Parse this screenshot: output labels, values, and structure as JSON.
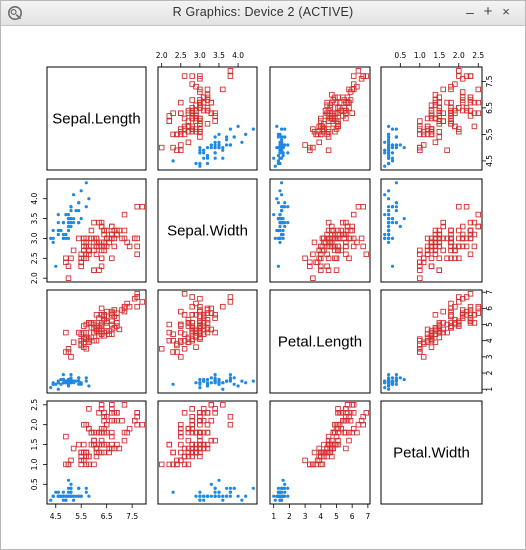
{
  "window": {
    "title": "R Graphics: Device 2 (ACTIVE)",
    "controls": {
      "minimize": "–",
      "maximize": "+",
      "close": "×"
    }
  },
  "colors": {
    "setosa": "#1e88e5",
    "other": "#d32f2f",
    "frame": "#000000"
  },
  "chart_data": {
    "type": "scatter",
    "variables": [
      "Sepal.Length",
      "Sepal.Width",
      "Petal.Length",
      "Petal.Width"
    ],
    "ranges": [
      [
        4.3,
        7.9
      ],
      [
        2.0,
        4.4
      ],
      [
        1.0,
        6.9
      ],
      [
        0.1,
        2.5
      ]
    ],
    "ticks": [
      [
        4.5,
        5.5,
        6.5,
        7.5
      ],
      [
        2.0,
        2.5,
        3.0,
        3.5,
        4.0
      ],
      [
        1,
        2,
        3,
        4,
        5,
        6,
        7
      ],
      [
        0.5,
        1.0,
        1.5,
        2.0,
        2.5
      ]
    ],
    "tick_labels": [
      [
        "4.5",
        "5.5",
        "6.5",
        "7.5"
      ],
      [
        "2.0",
        "2.5",
        "3.0",
        "3.5",
        "4.0"
      ],
      [
        "1",
        "2",
        "3",
        "4",
        "5",
        "6",
        "7"
      ],
      [
        "0.5",
        "1.0",
        "1.5",
        "2.0",
        "2.5"
      ]
    ],
    "series": [
      {
        "color": "#1e88e5",
        "marker": "filled-circle",
        "rows": [
          [
            5.1,
            3.5,
            1.4,
            0.2
          ],
          [
            4.9,
            3.0,
            1.4,
            0.2
          ],
          [
            4.7,
            3.2,
            1.3,
            0.2
          ],
          [
            4.6,
            3.1,
            1.5,
            0.2
          ],
          [
            5.0,
            3.6,
            1.4,
            0.2
          ],
          [
            5.4,
            3.9,
            1.7,
            0.4
          ],
          [
            4.6,
            3.4,
            1.4,
            0.3
          ],
          [
            5.0,
            3.4,
            1.5,
            0.2
          ],
          [
            4.4,
            2.9,
            1.4,
            0.2
          ],
          [
            4.9,
            3.1,
            1.5,
            0.1
          ],
          [
            5.4,
            3.7,
            1.5,
            0.2
          ],
          [
            4.8,
            3.4,
            1.6,
            0.2
          ],
          [
            4.8,
            3.0,
            1.4,
            0.1
          ],
          [
            4.3,
            3.0,
            1.1,
            0.1
          ],
          [
            5.8,
            4.0,
            1.2,
            0.2
          ],
          [
            5.7,
            4.4,
            1.5,
            0.4
          ],
          [
            5.4,
            3.9,
            1.3,
            0.4
          ],
          [
            5.1,
            3.5,
            1.4,
            0.3
          ],
          [
            5.7,
            3.8,
            1.7,
            0.3
          ],
          [
            5.1,
            3.8,
            1.5,
            0.3
          ],
          [
            5.4,
            3.4,
            1.7,
            0.2
          ],
          [
            5.1,
            3.7,
            1.5,
            0.4
          ],
          [
            4.6,
            3.6,
            1.0,
            0.2
          ],
          [
            5.1,
            3.3,
            1.7,
            0.5
          ],
          [
            4.8,
            3.4,
            1.9,
            0.2
          ],
          [
            5.0,
            3.0,
            1.6,
            0.2
          ],
          [
            5.0,
            3.4,
            1.6,
            0.4
          ],
          [
            5.2,
            3.5,
            1.5,
            0.2
          ],
          [
            5.2,
            3.4,
            1.4,
            0.2
          ],
          [
            4.7,
            3.2,
            1.6,
            0.2
          ],
          [
            4.8,
            3.1,
            1.6,
            0.2
          ],
          [
            5.4,
            3.4,
            1.5,
            0.4
          ],
          [
            5.2,
            4.1,
            1.5,
            0.1
          ],
          [
            5.5,
            4.2,
            1.4,
            0.2
          ],
          [
            4.9,
            3.1,
            1.5,
            0.2
          ],
          [
            5.0,
            3.2,
            1.2,
            0.2
          ],
          [
            5.5,
            3.5,
            1.3,
            0.2
          ],
          [
            4.9,
            3.6,
            1.4,
            0.1
          ],
          [
            4.4,
            3.0,
            1.3,
            0.2
          ],
          [
            5.1,
            3.4,
            1.5,
            0.2
          ],
          [
            5.0,
            3.5,
            1.3,
            0.3
          ],
          [
            4.5,
            2.3,
            1.3,
            0.3
          ],
          [
            4.4,
            3.2,
            1.3,
            0.2
          ],
          [
            5.0,
            3.5,
            1.6,
            0.6
          ],
          [
            5.1,
            3.8,
            1.9,
            0.4
          ],
          [
            4.8,
            3.0,
            1.4,
            0.3
          ],
          [
            5.1,
            3.8,
            1.6,
            0.2
          ],
          [
            4.6,
            3.2,
            1.4,
            0.2
          ],
          [
            5.3,
            3.7,
            1.5,
            0.2
          ],
          [
            5.0,
            3.3,
            1.4,
            0.2
          ]
        ]
      },
      {
        "color": "#d32f2f",
        "marker": "open-square",
        "rows": [
          [
            7.0,
            3.2,
            4.7,
            1.4
          ],
          [
            6.4,
            3.2,
            4.5,
            1.5
          ],
          [
            6.9,
            3.1,
            4.9,
            1.5
          ],
          [
            5.5,
            2.3,
            4.0,
            1.3
          ],
          [
            6.5,
            2.8,
            4.6,
            1.5
          ],
          [
            5.7,
            2.8,
            4.5,
            1.3
          ],
          [
            6.3,
            3.3,
            4.7,
            1.6
          ],
          [
            4.9,
            2.4,
            3.3,
            1.0
          ],
          [
            6.6,
            2.9,
            4.6,
            1.3
          ],
          [
            5.2,
            2.7,
            3.9,
            1.4
          ],
          [
            5.0,
            2.0,
            3.5,
            1.0
          ],
          [
            5.9,
            3.0,
            4.2,
            1.5
          ],
          [
            6.0,
            2.2,
            4.0,
            1.0
          ],
          [
            6.1,
            2.9,
            4.7,
            1.4
          ],
          [
            5.6,
            2.9,
            3.6,
            1.3
          ],
          [
            6.7,
            3.1,
            4.4,
            1.4
          ],
          [
            5.6,
            3.0,
            4.5,
            1.5
          ],
          [
            5.8,
            2.7,
            4.1,
            1.0
          ],
          [
            6.2,
            2.2,
            4.5,
            1.5
          ],
          [
            5.6,
            2.5,
            3.9,
            1.1
          ],
          [
            5.9,
            3.2,
            4.8,
            1.8
          ],
          [
            6.1,
            2.8,
            4.0,
            1.3
          ],
          [
            6.3,
            2.5,
            4.9,
            1.5
          ],
          [
            6.1,
            2.8,
            4.7,
            1.2
          ],
          [
            6.4,
            2.9,
            4.3,
            1.3
          ],
          [
            6.6,
            3.0,
            4.4,
            1.4
          ],
          [
            6.8,
            2.8,
            4.8,
            1.4
          ],
          [
            6.7,
            3.0,
            5.0,
            1.7
          ],
          [
            6.0,
            2.9,
            4.5,
            1.5
          ],
          [
            5.7,
            2.6,
            3.5,
            1.0
          ],
          [
            5.5,
            2.4,
            3.8,
            1.1
          ],
          [
            5.5,
            2.4,
            3.7,
            1.0
          ],
          [
            5.8,
            2.7,
            3.9,
            1.2
          ],
          [
            6.0,
            2.7,
            5.1,
            1.6
          ],
          [
            5.4,
            3.0,
            4.5,
            1.5
          ],
          [
            6.0,
            3.4,
            4.5,
            1.6
          ],
          [
            6.7,
            3.1,
            4.7,
            1.5
          ],
          [
            6.3,
            2.3,
            4.4,
            1.3
          ],
          [
            5.6,
            3.0,
            4.1,
            1.3
          ],
          [
            5.5,
            2.5,
            4.0,
            1.3
          ],
          [
            5.5,
            2.6,
            4.4,
            1.2
          ],
          [
            6.1,
            3.0,
            4.6,
            1.4
          ],
          [
            5.8,
            2.6,
            4.0,
            1.2
          ],
          [
            5.0,
            2.3,
            3.3,
            1.0
          ],
          [
            5.6,
            2.7,
            4.2,
            1.3
          ],
          [
            5.7,
            3.0,
            4.2,
            1.2
          ],
          [
            5.7,
            2.9,
            4.2,
            1.3
          ],
          [
            6.2,
            2.9,
            4.3,
            1.3
          ],
          [
            5.1,
            2.5,
            3.0,
            1.1
          ],
          [
            5.7,
            2.8,
            4.1,
            1.3
          ],
          [
            6.3,
            3.3,
            6.0,
            2.5
          ],
          [
            5.8,
            2.7,
            5.1,
            1.9
          ],
          [
            7.1,
            3.0,
            5.9,
            2.1
          ],
          [
            6.3,
            2.9,
            5.6,
            1.8
          ],
          [
            6.5,
            3.0,
            5.8,
            2.2
          ],
          [
            7.6,
            3.0,
            6.6,
            2.1
          ],
          [
            4.9,
            2.5,
            4.5,
            1.7
          ],
          [
            7.3,
            2.9,
            6.3,
            1.8
          ],
          [
            6.7,
            2.5,
            5.8,
            1.8
          ],
          [
            7.2,
            3.6,
            6.1,
            2.5
          ],
          [
            6.5,
            3.2,
            5.1,
            2.0
          ],
          [
            6.4,
            2.7,
            5.3,
            1.9
          ],
          [
            6.8,
            3.0,
            5.5,
            2.1
          ],
          [
            5.7,
            2.5,
            5.0,
            2.0
          ],
          [
            5.8,
            2.8,
            5.1,
            2.4
          ],
          [
            6.4,
            3.2,
            5.3,
            2.3
          ],
          [
            6.5,
            3.0,
            5.5,
            1.8
          ],
          [
            7.7,
            3.8,
            6.7,
            2.2
          ],
          [
            7.7,
            2.6,
            6.9,
            2.3
          ],
          [
            6.0,
            2.2,
            5.0,
            1.5
          ],
          [
            6.9,
            3.2,
            5.7,
            2.3
          ],
          [
            5.6,
            2.8,
            4.9,
            2.0
          ],
          [
            7.7,
            2.8,
            6.7,
            2.0
          ],
          [
            6.3,
            2.7,
            4.9,
            1.8
          ],
          [
            6.7,
            3.3,
            5.7,
            2.1
          ],
          [
            7.2,
            3.2,
            6.0,
            1.8
          ],
          [
            6.2,
            2.8,
            4.8,
            1.8
          ],
          [
            6.1,
            3.0,
            4.9,
            1.8
          ],
          [
            6.4,
            2.8,
            5.6,
            2.1
          ],
          [
            7.2,
            3.0,
            5.8,
            1.6
          ],
          [
            7.4,
            2.8,
            6.1,
            1.9
          ],
          [
            7.9,
            3.8,
            6.4,
            2.0
          ],
          [
            6.4,
            2.8,
            5.6,
            2.2
          ],
          [
            6.3,
            2.8,
            5.1,
            1.5
          ],
          [
            6.1,
            2.6,
            5.6,
            1.4
          ],
          [
            7.7,
            3.0,
            6.1,
            2.3
          ],
          [
            6.3,
            3.4,
            5.6,
            2.4
          ],
          [
            6.4,
            3.1,
            5.5,
            1.8
          ],
          [
            6.0,
            3.0,
            4.8,
            1.8
          ],
          [
            6.9,
            3.1,
            5.4,
            2.1
          ],
          [
            6.7,
            3.1,
            5.6,
            2.4
          ],
          [
            6.9,
            3.1,
            5.1,
            2.3
          ],
          [
            5.8,
            2.7,
            5.1,
            1.9
          ],
          [
            6.8,
            3.2,
            5.9,
            2.3
          ],
          [
            6.7,
            3.3,
            5.7,
            2.5
          ],
          [
            6.7,
            3.0,
            5.2,
            2.3
          ],
          [
            6.3,
            2.5,
            5.0,
            1.9
          ],
          [
            6.5,
            3.0,
            5.2,
            2.0
          ],
          [
            6.2,
            3.4,
            5.4,
            2.3
          ],
          [
            5.9,
            3.0,
            5.1,
            1.8
          ]
        ]
      }
    ]
  }
}
